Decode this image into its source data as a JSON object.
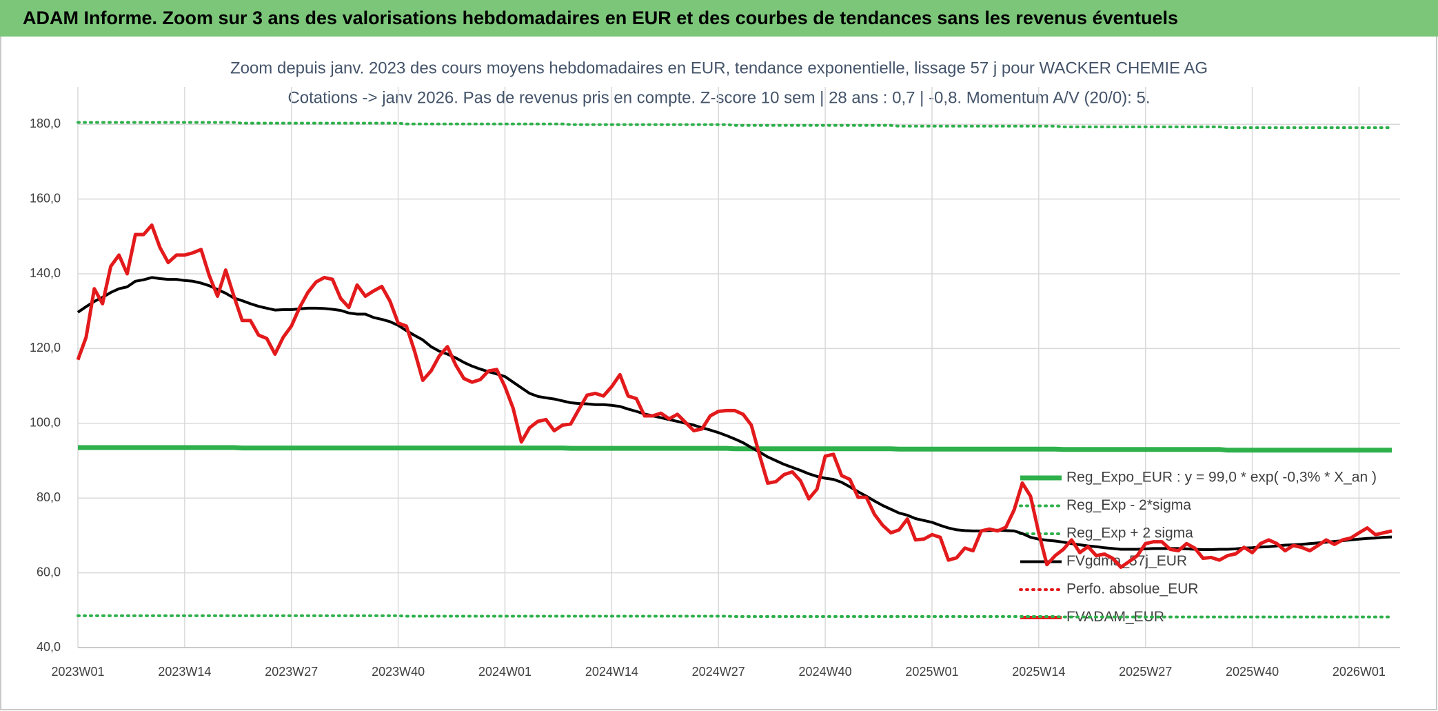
{
  "chart_data": {
    "type": "line",
    "header": "ADAM Informe. Zoom sur 3 ans des valorisations hebdomadaires en EUR et des courbes de tendances sans les revenus éventuels",
    "title": "Zoom depuis janv. 2023 des cours moyens hebdomadaires en EUR, tendance exponentielle, lissage 57 j pour WACKER CHEMIE AG",
    "subtitle": "Cotations -> janv 2026. Pas de revenus pris en compte. Z-score 10 sem | 28 ans : 0,7 | -0,8. Momentum A/V (20/0): 5.",
    "categories": [
      "2023W01",
      null,
      null,
      null,
      null,
      null,
      null,
      null,
      null,
      null,
      null,
      null,
      null,
      "2023W14",
      null,
      null,
      null,
      null,
      null,
      null,
      null,
      null,
      null,
      null,
      null,
      null,
      "2023W27",
      null,
      null,
      null,
      null,
      null,
      null,
      null,
      null,
      null,
      null,
      null,
      null,
      "2023W40",
      null,
      null,
      null,
      null,
      null,
      null,
      null,
      null,
      null,
      null,
      null,
      null,
      "2024W01",
      null,
      null,
      null,
      null,
      null,
      null,
      null,
      null,
      null,
      null,
      null,
      null,
      "2024W14",
      null,
      null,
      null,
      null,
      null,
      null,
      null,
      null,
      null,
      null,
      null,
      null,
      "2024W27",
      null,
      null,
      null,
      null,
      null,
      null,
      null,
      null,
      null,
      null,
      null,
      null,
      "2024W40",
      null,
      null,
      null,
      null,
      null,
      null,
      null,
      null,
      null,
      null,
      null,
      null,
      "2025W01",
      null,
      null,
      null,
      null,
      null,
      null,
      null,
      null,
      null,
      null,
      null,
      null,
      "2025W14",
      null,
      null,
      null,
      null,
      null,
      null,
      null,
      null,
      null,
      null,
      null,
      null,
      "2025W27",
      null,
      null,
      null,
      null,
      null,
      null,
      null,
      null,
      null,
      null,
      null,
      null,
      "2025W40",
      null,
      null,
      null,
      null,
      null,
      null,
      null,
      null,
      null,
      null,
      null,
      null,
      "2026W01",
      null,
      null,
      null,
      null
    ],
    "ylim": [
      40,
      190
    ],
    "yticks": [
      {
        "value": 40,
        "label": "40,0"
      },
      {
        "value": 60,
        "label": "60,0"
      },
      {
        "value": 80,
        "label": "80,0"
      },
      {
        "value": 100,
        "label": "100,0"
      },
      {
        "value": 120,
        "label": "120,0"
      },
      {
        "value": 140,
        "label": "140,0"
      },
      {
        "value": 160,
        "label": "160,0"
      },
      {
        "value": 180,
        "label": "180,0"
      }
    ],
    "grid": true,
    "legend": "lower right",
    "series": [
      {
        "name": "Reg_Expo_EUR : y = 99,0 * exp( -0,3% *  X_an )",
        "color": "#2eb04b",
        "line_style": "solid",
        "values": [
          93.5,
          93.5,
          93.5,
          93.5,
          93.5,
          93.5,
          93.5,
          93.5,
          93.5,
          93.5,
          93.5,
          93.5,
          93.5,
          93.5,
          93.5,
          93.5,
          93.5,
          93.5,
          93.5,
          93.5,
          93.4,
          93.4,
          93.4,
          93.4,
          93.4,
          93.4,
          93.4,
          93.4,
          93.4,
          93.4,
          93.4,
          93.4,
          93.4,
          93.4,
          93.4,
          93.4,
          93.4,
          93.4,
          93.4,
          93.4,
          93.4,
          93.4,
          93.4,
          93.4,
          93.4,
          93.4,
          93.4,
          93.4,
          93.4,
          93.4,
          93.4,
          93.4,
          93.4,
          93.4,
          93.4,
          93.4,
          93.4,
          93.4,
          93.4,
          93.4,
          93.3,
          93.3,
          93.3,
          93.3,
          93.3,
          93.3,
          93.3,
          93.3,
          93.3,
          93.3,
          93.3,
          93.3,
          93.3,
          93.3,
          93.3,
          93.3,
          93.3,
          93.3,
          93.3,
          93.3,
          93.2,
          93.2,
          93.2,
          93.2,
          93.2,
          93.2,
          93.2,
          93.2,
          93.2,
          93.2,
          93.2,
          93.2,
          93.2,
          93.2,
          93.2,
          93.2,
          93.2,
          93.2,
          93.2,
          93.2,
          93.1,
          93.1,
          93.1,
          93.1,
          93.1,
          93.1,
          93.1,
          93.1,
          93.1,
          93.1,
          93.1,
          93.1,
          93.1,
          93.1,
          93.1,
          93.1,
          93.1,
          93.1,
          93.1,
          93.1,
          93.0,
          93.0,
          93.0,
          93.0,
          93.0,
          93.0,
          93.0,
          93.0,
          93.0,
          93.0,
          93.0,
          93.0,
          93.0,
          93.0,
          93.0,
          93.0,
          93.0,
          93.0,
          93.0,
          93.0,
          92.8,
          92.8,
          92.8,
          92.8,
          92.8,
          92.8,
          92.8,
          92.8,
          92.8,
          92.8,
          92.8,
          92.8,
          92.8,
          92.8,
          92.8,
          92.8,
          92.8,
          92.8,
          92.8,
          92.8,
          92.8
        ]
      },
      {
        "name": "Reg_Exp - 2*sigma",
        "color": "#2eb04b",
        "line_style": "dotted",
        "values": [
          48.5,
          48.5,
          48.5,
          48.5,
          48.5,
          48.5,
          48.5,
          48.5,
          48.5,
          48.5,
          48.5,
          48.5,
          48.5,
          48.5,
          48.5,
          48.5,
          48.5,
          48.5,
          48.5,
          48.5,
          48.5,
          48.5,
          48.5,
          48.5,
          48.5,
          48.5,
          48.5,
          48.5,
          48.5,
          48.5,
          48.5,
          48.5,
          48.5,
          48.5,
          48.5,
          48.5,
          48.5,
          48.5,
          48.5,
          48.5,
          48.4,
          48.4,
          48.4,
          48.4,
          48.4,
          48.4,
          48.4,
          48.4,
          48.4,
          48.4,
          48.4,
          48.4,
          48.4,
          48.4,
          48.4,
          48.4,
          48.4,
          48.4,
          48.4,
          48.4,
          48.4,
          48.4,
          48.4,
          48.4,
          48.4,
          48.4,
          48.4,
          48.4,
          48.4,
          48.4,
          48.4,
          48.4,
          48.4,
          48.4,
          48.4,
          48.4,
          48.4,
          48.4,
          48.4,
          48.4,
          48.3,
          48.3,
          48.3,
          48.3,
          48.3,
          48.3,
          48.3,
          48.3,
          48.3,
          48.3,
          48.3,
          48.3,
          48.3,
          48.3,
          48.3,
          48.3,
          48.3,
          48.3,
          48.3,
          48.3,
          48.3,
          48.3,
          48.3,
          48.3,
          48.3,
          48.3,
          48.3,
          48.3,
          48.3,
          48.3,
          48.3,
          48.3,
          48.3,
          48.3,
          48.3,
          48.3,
          48.3,
          48.3,
          48.3,
          48.3,
          48.2,
          48.2,
          48.2,
          48.2,
          48.2,
          48.2,
          48.2,
          48.2,
          48.2,
          48.2,
          48.2,
          48.2,
          48.2,
          48.2,
          48.2,
          48.2,
          48.2,
          48.2,
          48.2,
          48.2,
          48.2,
          48.2,
          48.2,
          48.2,
          48.2,
          48.2,
          48.2,
          48.2,
          48.2,
          48.2,
          48.2,
          48.2,
          48.2,
          48.2,
          48.2,
          48.2,
          48.2,
          48.2,
          48.2,
          48.2,
          48.2
        ]
      },
      {
        "name": "Reg_Exp + 2 sigma",
        "color": "#2eb04b",
        "line_style": "dotted",
        "values": [
          180.5,
          180.5,
          180.5,
          180.5,
          180.5,
          180.5,
          180.5,
          180.5,
          180.5,
          180.5,
          180.5,
          180.5,
          180.5,
          180.5,
          180.5,
          180.5,
          180.5,
          180.5,
          180.5,
          180.5,
          180.3,
          180.3,
          180.3,
          180.3,
          180.3,
          180.3,
          180.3,
          180.3,
          180.3,
          180.3,
          180.3,
          180.3,
          180.3,
          180.3,
          180.3,
          180.3,
          180.3,
          180.3,
          180.3,
          180.3,
          180.1,
          180.1,
          180.1,
          180.1,
          180.1,
          180.1,
          180.1,
          180.1,
          180.1,
          180.1,
          180.1,
          180.1,
          180.1,
          180.1,
          180.1,
          180.1,
          180.1,
          180.1,
          180.1,
          180.1,
          179.9,
          179.9,
          179.9,
          179.9,
          179.9,
          179.9,
          179.9,
          179.9,
          179.9,
          179.9,
          179.9,
          179.9,
          179.9,
          179.9,
          179.9,
          179.9,
          179.9,
          179.9,
          179.9,
          179.9,
          179.7,
          179.7,
          179.7,
          179.7,
          179.7,
          179.7,
          179.7,
          179.7,
          179.7,
          179.7,
          179.7,
          179.7,
          179.7,
          179.7,
          179.7,
          179.7,
          179.7,
          179.7,
          179.7,
          179.7,
          179.5,
          179.5,
          179.5,
          179.5,
          179.5,
          179.5,
          179.5,
          179.5,
          179.5,
          179.5,
          179.5,
          179.5,
          179.5,
          179.5,
          179.5,
          179.5,
          179.5,
          179.5,
          179.5,
          179.5,
          179.3,
          179.3,
          179.3,
          179.3,
          179.3,
          179.3,
          179.3,
          179.3,
          179.3,
          179.3,
          179.3,
          179.3,
          179.3,
          179.3,
          179.3,
          179.3,
          179.3,
          179.3,
          179.3,
          179.3,
          179.1,
          179.1,
          179.1,
          179.1,
          179.1,
          179.1,
          179.1,
          179.1,
          179.1,
          179.1,
          179.1,
          179.1,
          179.1,
          179.1,
          179.1,
          179.1,
          179.1,
          179.1,
          179.1,
          179.1,
          179.1
        ]
      },
      {
        "name": "FVgdma_57j_EUR",
        "color": "#000000",
        "line_style": "solid",
        "values": [
          129.7,
          131.2,
          132.6,
          133.7,
          135,
          136,
          136.5,
          138,
          138.4,
          139,
          138.7,
          138.5,
          138.5,
          138.2,
          138,
          137.5,
          136.8,
          135.8,
          134.8,
          133.5,
          132.8,
          132,
          131.3,
          130.8,
          130.3,
          130.4,
          130.4,
          130.6,
          130.8,
          130.8,
          130.7,
          130.5,
          130.2,
          129.5,
          129.2,
          129.2,
          128.3,
          127.8,
          127.2,
          126.2,
          124.8,
          123.5,
          122.3,
          120.5,
          119.3,
          118.5,
          117.5,
          116.3,
          115.3,
          114.5,
          113.8,
          113.2,
          112.5,
          111,
          109.5,
          108,
          107.2,
          106.8,
          106.5,
          106,
          105.5,
          105.3,
          105.2,
          105,
          105,
          104.8,
          104.5,
          103.8,
          103.2,
          102.5,
          102,
          101.5,
          101,
          100.5,
          100,
          99.5,
          98.8,
          98.2,
          97.5,
          96.7,
          95.8,
          94.8,
          93.5,
          92.3,
          91,
          90,
          89,
          88.2,
          87.4,
          86.5,
          85.8,
          85.3,
          85,
          84.2,
          83,
          81.7,
          80.5,
          79.2,
          78,
          77,
          76,
          75.4,
          74.5,
          74,
          73.5,
          72.7,
          72,
          71.5,
          71.3,
          71.2,
          71.2,
          71.3,
          71.4,
          71.3,
          71.2,
          70.5,
          69.5,
          69,
          68.7,
          68.5,
          68.2,
          67.8,
          67.5,
          67.2,
          67,
          66.7,
          66.5,
          66.3,
          66.3,
          66.3,
          66.4,
          66.5,
          66.5,
          66.5,
          66.5,
          66.4,
          66.3,
          66.2,
          66.2,
          66.3,
          66.3,
          66.4,
          66.6,
          66.7,
          66.9,
          67,
          67.2,
          67.4,
          67.5,
          67.6,
          67.8,
          68,
          68.2,
          68.4,
          68.6,
          68.8,
          69,
          69.2,
          69.3,
          69.5,
          69.6
        ]
      },
      {
        "name": "Perfo. absolue_EUR",
        "color": "#e31a1c",
        "line_style": "dotted",
        "values": [
          null,
          null,
          null,
          null,
          null,
          null,
          null,
          null,
          null,
          null,
          null,
          null,
          null,
          null,
          null,
          null,
          null,
          null,
          null,
          null,
          null,
          null,
          null,
          null,
          null,
          null,
          null,
          null,
          null,
          null,
          null,
          null,
          null,
          null,
          null,
          null,
          null,
          null,
          null,
          null,
          null,
          null,
          null,
          null,
          null,
          null,
          null,
          null,
          null,
          null,
          null,
          null,
          null,
          null,
          null,
          null,
          null,
          null,
          null,
          null,
          null,
          null,
          null,
          null,
          null,
          null,
          null,
          null,
          null,
          null,
          null,
          null,
          null,
          null,
          null,
          null,
          null,
          null,
          null,
          null,
          null,
          null,
          null,
          null,
          null,
          null,
          null,
          null,
          null,
          null,
          null,
          null,
          null,
          null,
          null,
          null,
          null,
          null,
          null,
          null,
          null,
          null,
          null,
          null,
          null,
          null,
          null,
          null,
          null,
          null,
          null,
          null,
          null,
          null,
          null,
          null,
          null,
          null,
          null,
          null,
          null,
          null,
          null,
          null,
          null,
          null,
          null,
          null,
          null,
          null,
          null,
          null,
          null,
          null,
          null,
          null,
          null,
          null,
          null,
          null,
          null,
          null,
          null,
          null,
          null,
          null,
          null,
          null,
          null,
          null,
          null,
          null,
          null,
          null,
          null,
          null,
          null,
          null,
          null,
          null,
          null
        ]
      },
      {
        "name": "FVADAM_EUR",
        "color": "#e31a1c",
        "line_style": "solid",
        "values": [
          117,
          123,
          136,
          132,
          142,
          145,
          140,
          150.5,
          150.5,
          153,
          147,
          143,
          145,
          145,
          145.6,
          146.5,
          139.5,
          134,
          141,
          134,
          127.5,
          127.5,
          123.6,
          122.7,
          118.5,
          123,
          126,
          131,
          135,
          137.8,
          139,
          138.5,
          133.4,
          131,
          137,
          134,
          135.4,
          136.6,
          132.7,
          126.8,
          126,
          119.3,
          111.5,
          114,
          118,
          120.5,
          115.6,
          112,
          111,
          111.7,
          114,
          114.4,
          109.8,
          104,
          95,
          98.8,
          100.5,
          101,
          98,
          99.5,
          99.8,
          103.7,
          107.5,
          108,
          107.3,
          109.8,
          113,
          107.3,
          106.6,
          102,
          102,
          102.7,
          101.2,
          102.4,
          100.2,
          98,
          98.5,
          102,
          103.2,
          103.4,
          103.4,
          102.4,
          99.5,
          91.5,
          84,
          84.4,
          86.3,
          87,
          84.6,
          79.8,
          82.4,
          91.2,
          91.7,
          86,
          85,
          80.2,
          80.2,
          75.6,
          72.7,
          70.7,
          71.5,
          74.4,
          68.8,
          69,
          70.2,
          69.5,
          63.4,
          64,
          66.6,
          65.9,
          71.2,
          71.7,
          71.2,
          72.2,
          76.8,
          84,
          80.5,
          70.7,
          62.2,
          64.6,
          66.3,
          68.8,
          65.4,
          67,
          64.6,
          65,
          63.9,
          61.5,
          63,
          64.6,
          67.8,
          68.3,
          68.3,
          66.3,
          65.9,
          67.8,
          66.6,
          63.9,
          64.1,
          63.4,
          64.6,
          65.1,
          66.8,
          65.4,
          67.8,
          68.8,
          67.8,
          65.9,
          67.3,
          66.8,
          65.9,
          67.3,
          68.8,
          67.6,
          68.8,
          69.3,
          70.7,
          72,
          70.2,
          70.7,
          71.2
        ]
      }
    ]
  }
}
